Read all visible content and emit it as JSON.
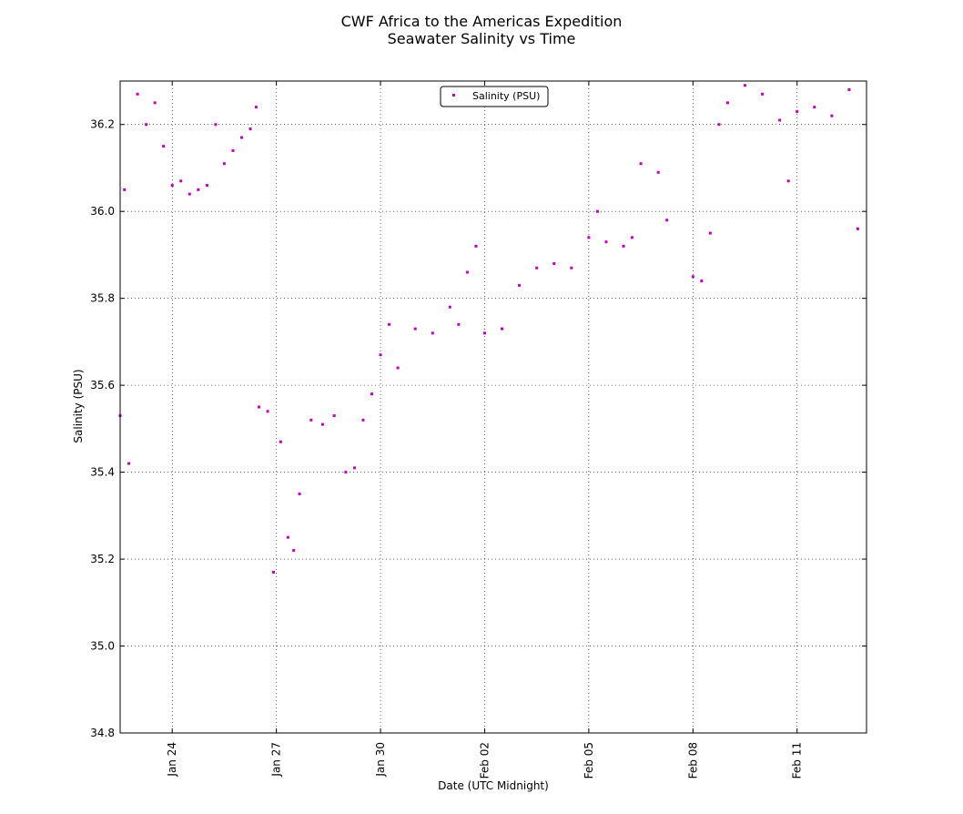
{
  "chart_data": {
    "type": "scatter",
    "title": "CWF Africa to the Americas Expedition",
    "subtitle": "Seawater Salinity vs Time",
    "xlabel": "Date (UTC Midnight)",
    "ylabel": "Salinity (PSU)",
    "x_ticks": [
      "Jan 24",
      "Jan 27",
      "Jan 30",
      "Feb 02",
      "Feb 05",
      "Feb 08",
      "Feb 11"
    ],
    "x_range": [
      "2016-01-22 12:00",
      "2016-02-13 00:00"
    ],
    "ylim": [
      34.8,
      36.3
    ],
    "y_ticks": [
      34.8,
      35.0,
      35.2,
      35.4,
      35.6,
      35.8,
      36.0,
      36.2
    ],
    "grid": true,
    "legend_placement": "upper-center",
    "series": [
      {
        "name": "Salinity (PSU)",
        "color": "#bf00bf",
        "points": [
          [
            "2016-01-22 12:00",
            35.53
          ],
          [
            "2016-01-22 15:00",
            36.05
          ],
          [
            "2016-01-22 18:00",
            35.42
          ],
          [
            "2016-01-23 00:00",
            36.27
          ],
          [
            "2016-01-23 06:00",
            36.2
          ],
          [
            "2016-01-23 12:00",
            36.25
          ],
          [
            "2016-01-23 18:00",
            36.15
          ],
          [
            "2016-01-24 00:00",
            36.06
          ],
          [
            "2016-01-24 06:00",
            36.07
          ],
          [
            "2016-01-24 12:00",
            36.04
          ],
          [
            "2016-01-24 18:00",
            36.05
          ],
          [
            "2016-01-25 00:00",
            36.06
          ],
          [
            "2016-01-25 06:00",
            36.2
          ],
          [
            "2016-01-25 12:00",
            36.11
          ],
          [
            "2016-01-25 18:00",
            36.14
          ],
          [
            "2016-01-26 00:00",
            36.17
          ],
          [
            "2016-01-26 06:00",
            36.19
          ],
          [
            "2016-01-26 10:00",
            36.24
          ],
          [
            "2016-01-26 12:00",
            35.55
          ],
          [
            "2016-01-26 18:00",
            35.54
          ],
          [
            "2016-01-26 22:00",
            35.17
          ],
          [
            "2016-01-27 03:00",
            35.47
          ],
          [
            "2016-01-27 08:00",
            35.25
          ],
          [
            "2016-01-27 12:00",
            35.22
          ],
          [
            "2016-01-27 16:00",
            35.35
          ],
          [
            "2016-01-28 00:00",
            35.52
          ],
          [
            "2016-01-28 08:00",
            35.51
          ],
          [
            "2016-01-28 16:00",
            35.53
          ],
          [
            "2016-01-29 00:00",
            35.4
          ],
          [
            "2016-01-29 06:00",
            35.41
          ],
          [
            "2016-01-29 12:00",
            35.52
          ],
          [
            "2016-01-29 18:00",
            35.58
          ],
          [
            "2016-01-30 00:00",
            35.67
          ],
          [
            "2016-01-30 06:00",
            35.74
          ],
          [
            "2016-01-30 12:00",
            35.64
          ],
          [
            "2016-01-31 00:00",
            35.73
          ],
          [
            "2016-01-31 12:00",
            35.72
          ],
          [
            "2016-02-01 00:00",
            35.78
          ],
          [
            "2016-02-01 06:00",
            35.74
          ],
          [
            "2016-02-01 12:00",
            35.86
          ],
          [
            "2016-02-01 18:00",
            35.92
          ],
          [
            "2016-02-02 00:00",
            35.72
          ],
          [
            "2016-02-02 12:00",
            35.73
          ],
          [
            "2016-02-03 00:00",
            35.83
          ],
          [
            "2016-02-03 12:00",
            35.87
          ],
          [
            "2016-02-04 00:00",
            35.88
          ],
          [
            "2016-02-04 12:00",
            35.87
          ],
          [
            "2016-02-05 00:00",
            35.94
          ],
          [
            "2016-02-05 06:00",
            36.0
          ],
          [
            "2016-02-05 12:00",
            35.93
          ],
          [
            "2016-02-06 00:00",
            35.92
          ],
          [
            "2016-02-06 06:00",
            35.94
          ],
          [
            "2016-02-06 12:00",
            36.11
          ],
          [
            "2016-02-07 00:00",
            36.09
          ],
          [
            "2016-02-07 06:00",
            35.98
          ],
          [
            "2016-02-08 00:00",
            35.85
          ],
          [
            "2016-02-08 06:00",
            35.84
          ],
          [
            "2016-02-08 12:00",
            35.95
          ],
          [
            "2016-02-08 18:00",
            36.2
          ],
          [
            "2016-02-09 00:00",
            36.25
          ],
          [
            "2016-02-09 12:00",
            36.29
          ],
          [
            "2016-02-10 00:00",
            36.27
          ],
          [
            "2016-02-10 12:00",
            36.21
          ],
          [
            "2016-02-10 18:00",
            36.07
          ],
          [
            "2016-02-11 00:00",
            36.23
          ],
          [
            "2016-02-11 12:00",
            36.24
          ],
          [
            "2016-02-12 00:00",
            36.22
          ],
          [
            "2016-02-12 12:00",
            36.28
          ],
          [
            "2016-02-12 18:00",
            35.96
          ]
        ]
      }
    ]
  }
}
